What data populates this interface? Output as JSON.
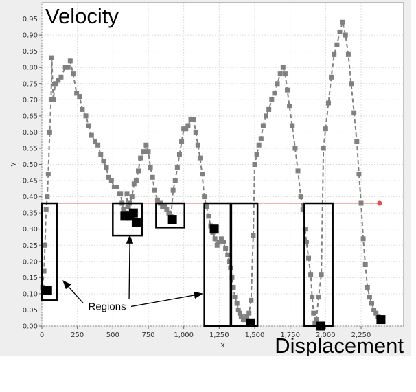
{
  "chart_data": {
    "type": "line",
    "title": "Velocity",
    "corner_label": "Displacement",
    "xlabel": "x",
    "ylabel": "y",
    "xlim": [
      0,
      2550
    ],
    "ylim": [
      0,
      1.0
    ],
    "x_ticks": [
      {
        "v": 0,
        "label": "0"
      },
      {
        "v": 250,
        "label": "250"
      },
      {
        "v": 500,
        "label": "500"
      },
      {
        "v": 750,
        "label": "750"
      },
      {
        "v": 1000,
        "label": "1,000"
      },
      {
        "v": 1250,
        "label": "1,250"
      },
      {
        "v": 1500,
        "label": "1,500"
      },
      {
        "v": 1750,
        "label": "1,750"
      },
      {
        "v": 2000,
        "label": "2,000"
      },
      {
        "v": 2250,
        "label": "2,250"
      }
    ],
    "y_ticks": [
      {
        "v": 0.0,
        "label": "0.00"
      },
      {
        "v": 0.05,
        "label": "0.05"
      },
      {
        "v": 0.1,
        "label": "0.10"
      },
      {
        "v": 0.15,
        "label": "0.15"
      },
      {
        "v": 0.2,
        "label": "0.20"
      },
      {
        "v": 0.25,
        "label": "0.25"
      },
      {
        "v": 0.3,
        "label": "0.30"
      },
      {
        "v": 0.35,
        "label": "0.35"
      },
      {
        "v": 0.4,
        "label": "0.40"
      },
      {
        "v": 0.45,
        "label": "0.45"
      },
      {
        "v": 0.5,
        "label": "0.50"
      },
      {
        "v": 0.55,
        "label": "0.55"
      },
      {
        "v": 0.6,
        "label": "0.60"
      },
      {
        "v": 0.65,
        "label": "0.65"
      },
      {
        "v": 0.7,
        "label": "0.70"
      },
      {
        "v": 0.75,
        "label": "0.75"
      },
      {
        "v": 0.8,
        "label": "0.80"
      },
      {
        "v": 0.85,
        "label": "0.85"
      },
      {
        "v": 0.9,
        "label": "0.90"
      },
      {
        "v": 0.95,
        "label": "0.95"
      }
    ],
    "grid": true,
    "threshold": {
      "y": 0.38,
      "x_start": 0,
      "x_end": 2380,
      "color": "#f08080"
    },
    "series": [
      {
        "color": "#808080",
        "dash": true,
        "points": [
          [
            5,
            0.12
          ],
          [
            15,
            0.17
          ],
          [
            22,
            0.25
          ],
          [
            30,
            0.36
          ],
          [
            38,
            0.4
          ],
          [
            45,
            0.47
          ],
          [
            55,
            0.6
          ],
          [
            65,
            0.7
          ],
          [
            70,
            0.83
          ],
          [
            80,
            0.7
          ],
          [
            95,
            0.75
          ],
          [
            115,
            0.76
          ],
          [
            135,
            0.77
          ],
          [
            165,
            0.8
          ],
          [
            185,
            0.8
          ],
          [
            200,
            0.82
          ],
          [
            220,
            0.78
          ],
          [
            245,
            0.72
          ],
          [
            265,
            0.71
          ],
          [
            285,
            0.67
          ],
          [
            310,
            0.65
          ],
          [
            330,
            0.62
          ],
          [
            350,
            0.59
          ],
          [
            375,
            0.57
          ],
          [
            395,
            0.56
          ],
          [
            415,
            0.53
          ],
          [
            435,
            0.51
          ],
          [
            455,
            0.49
          ],
          [
            470,
            0.46
          ],
          [
            490,
            0.45
          ],
          [
            510,
            0.43
          ],
          [
            530,
            0.43
          ],
          [
            545,
            0.41
          ],
          [
            555,
            0.41
          ],
          [
            565,
            0.38
          ],
          [
            575,
            0.36
          ],
          [
            590,
            0.35
          ],
          [
            600,
            0.41
          ],
          [
            610,
            0.37
          ],
          [
            620,
            0.38
          ],
          [
            635,
            0.4
          ],
          [
            650,
            0.44
          ],
          [
            665,
            0.45
          ],
          [
            680,
            0.48
          ],
          [
            695,
            0.52
          ],
          [
            715,
            0.54
          ],
          [
            735,
            0.56
          ],
          [
            750,
            0.54
          ],
          [
            765,
            0.49
          ],
          [
            780,
            0.46
          ],
          [
            795,
            0.42
          ],
          [
            815,
            0.39
          ],
          [
            835,
            0.38
          ],
          [
            850,
            0.37
          ],
          [
            865,
            0.37
          ],
          [
            880,
            0.36
          ],
          [
            895,
            0.35
          ],
          [
            910,
            0.34
          ],
          [
            925,
            0.42
          ],
          [
            940,
            0.45
          ],
          [
            955,
            0.49
          ],
          [
            970,
            0.53
          ],
          [
            985,
            0.57
          ],
          [
            1000,
            0.61
          ],
          [
            1015,
            0.61
          ],
          [
            1030,
            0.62
          ],
          [
            1050,
            0.64
          ],
          [
            1070,
            0.64
          ],
          [
            1085,
            0.6
          ],
          [
            1100,
            0.56
          ],
          [
            1115,
            0.52
          ],
          [
            1130,
            0.47
          ],
          [
            1145,
            0.4
          ],
          [
            1160,
            0.37
          ],
          [
            1175,
            0.34
          ],
          [
            1190,
            0.31
          ],
          [
            1205,
            0.29
          ],
          [
            1220,
            0.27
          ],
          [
            1235,
            0.25
          ],
          [
            1250,
            0.26
          ],
          [
            1265,
            0.27
          ],
          [
            1280,
            0.26
          ],
          [
            1295,
            0.24
          ],
          [
            1310,
            0.22
          ],
          [
            1320,
            0.2
          ],
          [
            1330,
            0.18
          ],
          [
            1340,
            0.15
          ],
          [
            1350,
            0.12
          ],
          [
            1360,
            0.09
          ],
          [
            1375,
            0.07
          ],
          [
            1385,
            0.05
          ],
          [
            1395,
            0.04
          ],
          [
            1405,
            0.03
          ],
          [
            1420,
            0.02
          ],
          [
            1430,
            0.02
          ],
          [
            1445,
            0.03
          ],
          [
            1460,
            0.04
          ],
          [
            1475,
            0.08
          ],
          [
            1490,
            0.28
          ],
          [
            1500,
            0.5
          ],
          [
            1515,
            0.53
          ],
          [
            1530,
            0.56
          ],
          [
            1545,
            0.58
          ],
          [
            1560,
            0.62
          ],
          [
            1580,
            0.65
          ],
          [
            1600,
            0.67
          ],
          [
            1620,
            0.7
          ],
          [
            1640,
            0.72
          ],
          [
            1660,
            0.75
          ],
          [
            1680,
            0.78
          ],
          [
            1700,
            0.8
          ],
          [
            1715,
            0.78
          ],
          [
            1730,
            0.73
          ],
          [
            1745,
            0.68
          ],
          [
            1765,
            0.62
          ],
          [
            1785,
            0.55
          ],
          [
            1805,
            0.48
          ],
          [
            1825,
            0.4
          ],
          [
            1840,
            0.36
          ],
          [
            1855,
            0.3
          ],
          [
            1865,
            0.26
          ],
          [
            1880,
            0.21
          ],
          [
            1895,
            0.16
          ],
          [
            1905,
            0.09
          ],
          [
            1915,
            0.04
          ],
          [
            1925,
            0.01
          ],
          [
            1935,
            0.02
          ],
          [
            1950,
            0.09
          ],
          [
            1970,
            0.16
          ],
          [
            1985,
            0.55
          ],
          [
            2000,
            0.61
          ],
          [
            2020,
            0.69
          ],
          [
            2040,
            0.77
          ],
          [
            2060,
            0.84
          ],
          [
            2080,
            0.87
          ],
          [
            2100,
            0.91
          ],
          [
            2120,
            0.94
          ],
          [
            2140,
            0.9
          ],
          [
            2160,
            0.84
          ],
          [
            2180,
            0.75
          ],
          [
            2200,
            0.66
          ],
          [
            2220,
            0.57
          ],
          [
            2235,
            0.47
          ],
          [
            2250,
            0.38
          ],
          [
            2265,
            0.27
          ],
          [
            2280,
            0.19
          ],
          [
            2295,
            0.12
          ],
          [
            2310,
            0.09
          ],
          [
            2325,
            0.07
          ],
          [
            2340,
            0.05
          ],
          [
            2355,
            0.04
          ],
          [
            2370,
            0.03
          ],
          [
            2385,
            0.02
          ]
        ]
      }
    ],
    "highlight_points": [
      [
        40,
        0.11
      ],
      [
        585,
        0.34
      ],
      [
        620,
        0.34
      ],
      [
        645,
        0.35
      ],
      [
        665,
        0.32
      ],
      [
        920,
        0.33
      ],
      [
        1215,
        0.3
      ],
      [
        1470,
        0.01
      ],
      [
        1965,
        0.0
      ],
      [
        2390,
        0.02
      ]
    ],
    "regions": [
      {
        "x0": 0,
        "x1": 105,
        "y0": 0.08,
        "y1": 0.38
      },
      {
        "x0": 500,
        "x1": 705,
        "y0": 0.28,
        "y1": 0.38
      },
      {
        "x0": 805,
        "x1": 1005,
        "y0": 0.305,
        "y1": 0.38
      },
      {
        "x0": 1145,
        "x1": 1330,
        "y0": 0.0,
        "y1": 0.38
      },
      {
        "x0": 1335,
        "x1": 1520,
        "y0": 0.0,
        "y1": 0.38
      },
      {
        "x0": 1850,
        "x1": 2050,
        "y0": 0.0,
        "y1": 0.38
      }
    ],
    "annotation": {
      "text": "Regions",
      "text_anchor_value": [
        460,
        0.05
      ],
      "arrow_targets": [
        [
          150,
          0.14
        ],
        [
          620,
          0.28
        ],
        [
          1130,
          0.1
        ]
      ]
    }
  }
}
